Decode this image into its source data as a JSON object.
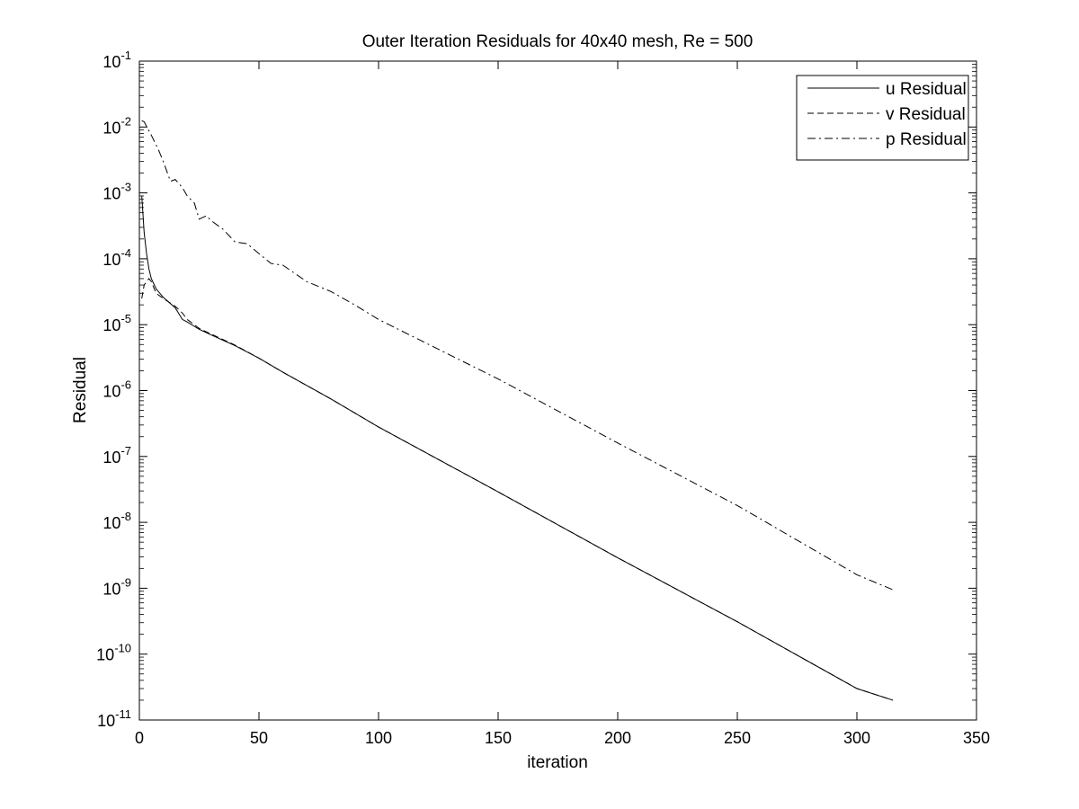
{
  "chart_data": {
    "type": "line",
    "title": "Outer Iteration Residuals for 40x40 mesh, Re = 500",
    "xlabel": "iteration",
    "ylabel": "Residual",
    "xscale": "linear",
    "yscale": "log",
    "xlim": [
      0,
      350
    ],
    "ylim": [
      1e-11,
      0.1
    ],
    "xticks": [
      0,
      50,
      100,
      150,
      200,
      250,
      300,
      350
    ],
    "xtick_labels": [
      "0",
      "50",
      "100",
      "150",
      "200",
      "250",
      "300",
      "350"
    ],
    "yticks": [
      {
        "value": 1e-11,
        "base": "10",
        "exp": "-11"
      },
      {
        "value": 1e-10,
        "base": "10",
        "exp": "-10"
      },
      {
        "value": 1e-09,
        "base": "10",
        "exp": "-9"
      },
      {
        "value": 1e-08,
        "base": "10",
        "exp": "-8"
      },
      {
        "value": 1e-07,
        "base": "10",
        "exp": "-7"
      },
      {
        "value": 1e-06,
        "base": "10",
        "exp": "-6"
      },
      {
        "value": 1e-05,
        "base": "10",
        "exp": "-5"
      },
      {
        "value": 0.0001,
        "base": "10",
        "exp": "-4"
      },
      {
        "value": 0.001,
        "base": "10",
        "exp": "-3"
      },
      {
        "value": 0.01,
        "base": "10",
        "exp": "-2"
      },
      {
        "value": 0.1,
        "base": "10",
        "exp": "-1"
      }
    ],
    "grid": false,
    "legend_position": "top-right",
    "series": [
      {
        "name": "u Residual",
        "line_style": "solid",
        "color": "#000000",
        "x": [
          1,
          2,
          3,
          4,
          5,
          7,
          10,
          15,
          18,
          20,
          25,
          30,
          40,
          50,
          60,
          80,
          100,
          150,
          200,
          250,
          300,
          315
        ],
        "y": [
          0.0009,
          0.00025,
          0.00012,
          7e-05,
          5e-05,
          3.5e-05,
          2.6e-05,
          1.8e-05,
          1.2e-05,
          1.1e-05,
          8.5e-06,
          7e-06,
          4.8e-06,
          3.1e-06,
          1.9e-06,
          7.5e-07,
          2.8e-07,
          2.9e-08,
          2.9e-09,
          3.1e-10,
          3e-11,
          2e-11
        ]
      },
      {
        "name": "v Residual",
        "line_style": "dashed",
        "color": "#000000",
        "x": [
          1,
          2,
          3,
          4,
          5,
          7,
          10,
          15,
          18,
          20,
          25,
          30,
          40,
          50,
          60,
          80,
          100,
          150,
          200,
          250,
          300,
          315
        ],
        "y": [
          2.5e-05,
          4e-05,
          4.5e-05,
          5e-05,
          4.5e-05,
          3e-05,
          2.5e-05,
          1.9e-05,
          1.5e-05,
          1.2e-05,
          8.8e-06,
          7.2e-06,
          4.9e-06,
          3.1e-06,
          1.9e-06,
          7.5e-07,
          2.8e-07,
          2.9e-08,
          2.9e-09,
          3.1e-10,
          3e-11,
          2e-11
        ]
      },
      {
        "name": "p Residual",
        "line_style": "dashdot",
        "color": "#000000",
        "x": [
          1,
          2,
          5,
          8,
          10,
          13,
          15,
          18,
          20,
          23,
          25,
          28,
          30,
          35,
          40,
          45,
          50,
          55,
          60,
          70,
          80,
          90,
          100,
          150,
          200,
          250,
          300,
          315
        ],
        "y": [
          0.0125,
          0.012,
          0.0075,
          0.0045,
          0.003,
          0.0015,
          0.0016,
          0.0012,
          0.0009,
          0.0007,
          0.0004,
          0.00045,
          0.00038,
          0.00028,
          0.00018,
          0.00017,
          0.00012,
          8.5e-05,
          8e-05,
          4.5e-05,
          3.2e-05,
          2e-05,
          1.2e-05,
          1.5e-06,
          1.6e-07,
          1.8e-08,
          1.6e-09,
          9.5e-10
        ]
      }
    ]
  }
}
